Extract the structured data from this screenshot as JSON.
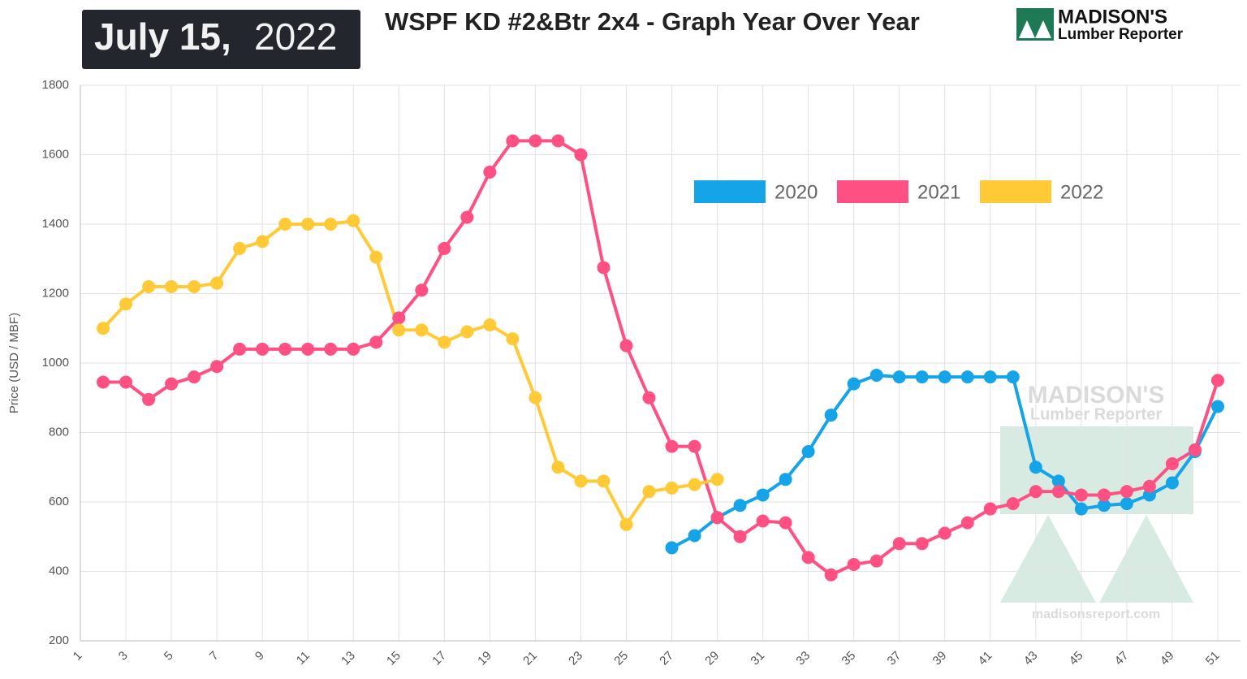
{
  "header": {
    "date_main": "July 15,",
    "date_year": "2022",
    "logo_name": "MADISON'S",
    "logo_sub": "Lumber Reporter",
    "watermark_name": "MADISON'S",
    "watermark_sub": "Lumber Reporter",
    "watermark_url": "madisonsreport.com"
  },
  "chart_data": {
    "type": "line",
    "title": "WSPF KD #2&Btr 2x4 - Graph Year Over Year",
    "y_label": "Price (USD / MBF)",
    "x": [
      1,
      2,
      3,
      4,
      5,
      6,
      7,
      8,
      9,
      10,
      11,
      12,
      13,
      14,
      15,
      16,
      17,
      18,
      19,
      20,
      21,
      22,
      23,
      24,
      25,
      26,
      27,
      28,
      29,
      30,
      31,
      32,
      33,
      34,
      35,
      36,
      37,
      38,
      39,
      40,
      41,
      42,
      43,
      44,
      45,
      46,
      47,
      48,
      49,
      50,
      51,
      52
    ],
    "xlim": [
      1,
      52
    ],
    "xticks": [
      1,
      3,
      5,
      7,
      9,
      11,
      13,
      15,
      17,
      19,
      21,
      23,
      25,
      27,
      29,
      31,
      33,
      35,
      37,
      39,
      41,
      43,
      45,
      47,
      49,
      51
    ],
    "ylim": [
      200,
      1800
    ],
    "yticks": [
      200,
      400,
      600,
      800,
      1000,
      1200,
      1400,
      1600,
      1800
    ],
    "grid": true,
    "legend": true,
    "series": [
      {
        "name": "2020",
        "color": "#16a4e8",
        "values": [
          null,
          null,
          null,
          null,
          null,
          null,
          null,
          null,
          null,
          null,
          null,
          null,
          null,
          null,
          null,
          null,
          null,
          null,
          null,
          null,
          null,
          null,
          null,
          null,
          null,
          null,
          468,
          503,
          555,
          590,
          620,
          665,
          745,
          850,
          940,
          965,
          960,
          960,
          960,
          960,
          960,
          960,
          700,
          660,
          580,
          590,
          595,
          620,
          655,
          745,
          875,
          null
        ]
      },
      {
        "name": "2021",
        "color": "#ff5083",
        "values": [
          null,
          945,
          945,
          895,
          940,
          960,
          990,
          1040,
          1040,
          1040,
          1040,
          1040,
          1040,
          1060,
          1130,
          1210,
          1330,
          1420,
          1550,
          1640,
          1640,
          1640,
          1600,
          1275,
          1050,
          900,
          760,
          760,
          555,
          500,
          545,
          540,
          440,
          390,
          420,
          430,
          480,
          480,
          510,
          540,
          580,
          595,
          630,
          630,
          620,
          620,
          630,
          645,
          710,
          750,
          950,
          null
        ]
      },
      {
        "name": "2022",
        "color": "#ffca35",
        "values": [
          null,
          1100,
          1170,
          1220,
          1220,
          1220,
          1230,
          1330,
          1350,
          1400,
          1400,
          1400,
          1410,
          1305,
          1095,
          1095,
          1060,
          1090,
          1110,
          1070,
          900,
          700,
          660,
          660,
          535,
          630,
          640,
          650,
          665,
          null,
          null,
          null,
          null,
          null,
          null,
          null,
          null,
          null,
          null,
          null,
          null,
          null,
          null,
          null,
          null,
          null,
          null,
          null,
          null,
          null,
          null,
          null
        ]
      }
    ]
  }
}
